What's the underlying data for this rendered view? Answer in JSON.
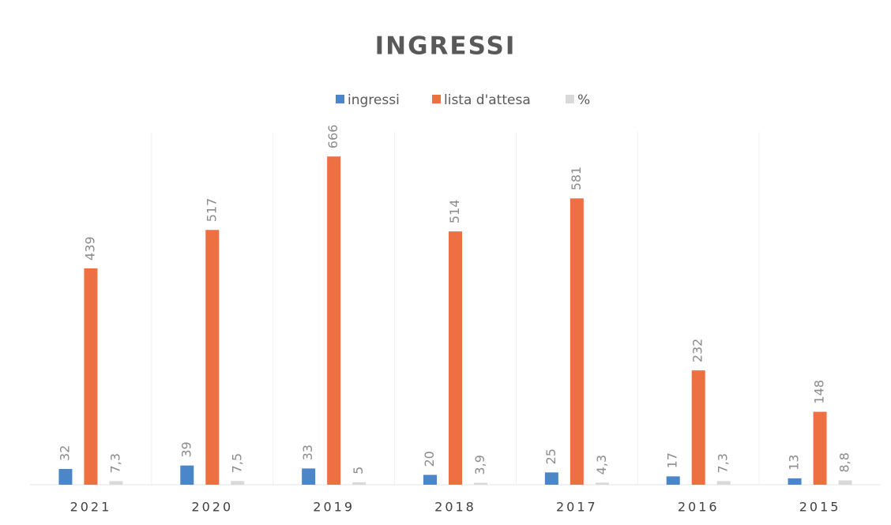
{
  "chart_data": {
    "type": "bar",
    "title": "INGRESSI",
    "categories": [
      "2021",
      "2020",
      "2019",
      "2018",
      "2017",
      "2016",
      "2015"
    ],
    "series": [
      {
        "name": "ingressi",
        "color": "#4a86c8",
        "values": [
          32,
          39,
          33,
          20,
          25,
          17,
          13
        ]
      },
      {
        "name": "lista d'attesa",
        "color": "#ee7042",
        "values": [
          439,
          517,
          666,
          514,
          581,
          232,
          148
        ]
      },
      {
        "name": "%",
        "color": "#d9d9d9",
        "values": [
          7.3,
          7.5,
          5,
          3.9,
          4.3,
          7.3,
          8.8
        ],
        "value_labels": [
          "7,3",
          "7,5",
          "5",
          "3,9",
          "4,3",
          "7,3",
          "8,8"
        ]
      }
    ],
    "ylim": [
      0,
      700
    ],
    "legend": "top"
  }
}
